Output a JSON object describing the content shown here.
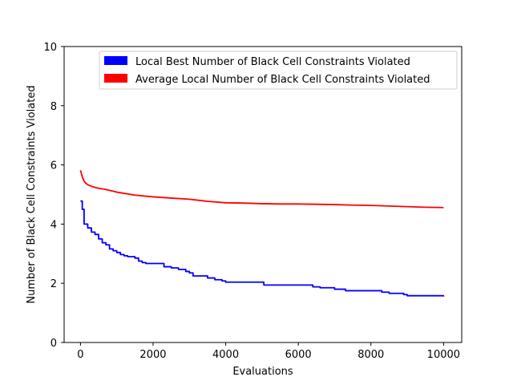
{
  "chart_data": {
    "type": "line",
    "xlabel": "Evaluations",
    "ylabel": "Number of Black Cell Constraints Violated",
    "xlim": [
      -450,
      10500
    ],
    "ylim": [
      0,
      10
    ],
    "xticks": [
      0,
      2000,
      4000,
      6000,
      8000,
      10000
    ],
    "xtick_labels": [
      "0",
      "2000",
      "4000",
      "6000",
      "8000",
      "10000"
    ],
    "yticks": [
      0,
      2,
      4,
      6,
      8,
      10
    ],
    "ytick_labels": [
      "0",
      "2",
      "4",
      "6",
      "8",
      "10"
    ],
    "grid": false,
    "legend_position": "top-right",
    "series": [
      {
        "name": "Local Best Number of Black Cell Constraints Violated",
        "color": "#0000ff",
        "x": [
          0,
          50,
          100,
          200,
          300,
          400,
          500,
          600,
          700,
          800,
          900,
          1000,
          1100,
          1200,
          1300,
          1400,
          1500,
          1600,
          1700,
          1800,
          1900,
          2000,
          2200,
          2300,
          2500,
          2700,
          2900,
          3000,
          3100,
          3300,
          3500,
          3700,
          3900,
          4000,
          4500,
          5000,
          5050,
          5500,
          6000,
          6300,
          6400,
          6600,
          7000,
          7300,
          7500,
          8000,
          8300,
          8500,
          8900,
          9000,
          9500,
          9900,
          10000
        ],
        "y": [
          4.78,
          4.5,
          4.0,
          3.87,
          3.73,
          3.65,
          3.5,
          3.37,
          3.3,
          3.16,
          3.1,
          3.04,
          2.97,
          2.93,
          2.9,
          2.9,
          2.85,
          2.75,
          2.7,
          2.67,
          2.67,
          2.67,
          2.67,
          2.56,
          2.52,
          2.47,
          2.4,
          2.35,
          2.25,
          2.25,
          2.18,
          2.12,
          2.08,
          2.04,
          2.04,
          2.04,
          1.94,
          1.94,
          1.94,
          1.94,
          1.88,
          1.85,
          1.8,
          1.75,
          1.75,
          1.75,
          1.7,
          1.66,
          1.62,
          1.58,
          1.58,
          1.58,
          1.55
        ]
      },
      {
        "name": "Average Local Number of Black Cell Constraints Violated",
        "color": "#ff0000",
        "x": [
          0,
          50,
          100,
          150,
          200,
          300,
          400,
          500,
          700,
          1000,
          1500,
          2000,
          2500,
          3000,
          3500,
          4000,
          4500,
          5000,
          5500,
          6000,
          6500,
          7000,
          7500,
          8000,
          8500,
          9000,
          9500,
          10000
        ],
        "y": [
          5.82,
          5.6,
          5.45,
          5.38,
          5.33,
          5.28,
          5.24,
          5.21,
          5.17,
          5.08,
          4.98,
          4.92,
          4.88,
          4.84,
          4.77,
          4.72,
          4.71,
          4.69,
          4.68,
          4.68,
          4.67,
          4.66,
          4.64,
          4.63,
          4.61,
          4.59,
          4.57,
          4.56
        ]
      }
    ]
  }
}
